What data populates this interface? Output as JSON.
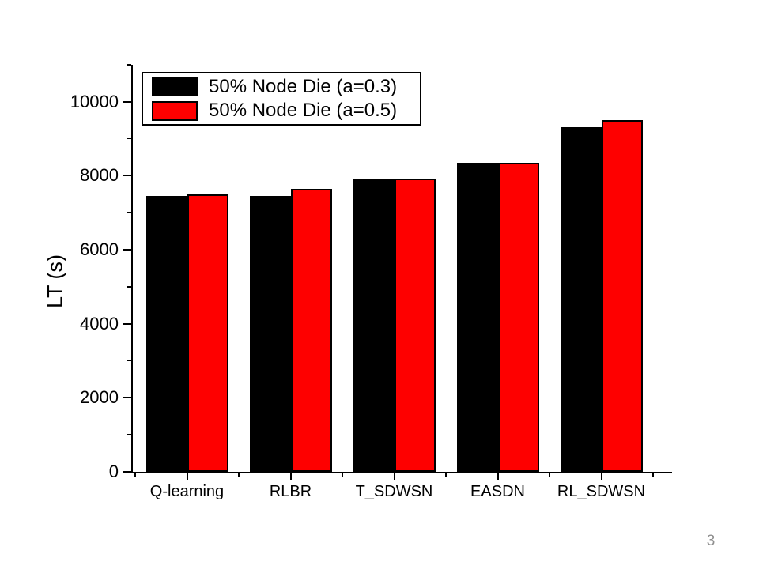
{
  "slide": {
    "page_number": "3",
    "background_color": "#ffffff"
  },
  "chart_data": {
    "type": "bar",
    "title": "",
    "xlabel": "",
    "ylabel": "LT (s)",
    "categories": [
      "Q-learning",
      "RLBR",
      "T_SDWSN",
      "EASDN",
      "RL_SDWSN"
    ],
    "series": [
      {
        "name": "50% Node Die (a=0.3)",
        "color": "#000000",
        "values": [
          7450,
          7450,
          7900,
          8350,
          9300
        ]
      },
      {
        "name": "50% Node Die (a=0.5)",
        "color": "#fe0000",
        "values": [
          7500,
          7650,
          7920,
          8350,
          9500
        ]
      }
    ],
    "ylim": [
      0,
      11000
    ],
    "y_major_ticks": [
      0,
      2000,
      4000,
      6000,
      8000,
      10000
    ],
    "y_minor_step": 1000,
    "bar_outline_color": "#000000",
    "grid": false,
    "legend_position": "top-left-inside",
    "legend_border_color": "#000000"
  }
}
